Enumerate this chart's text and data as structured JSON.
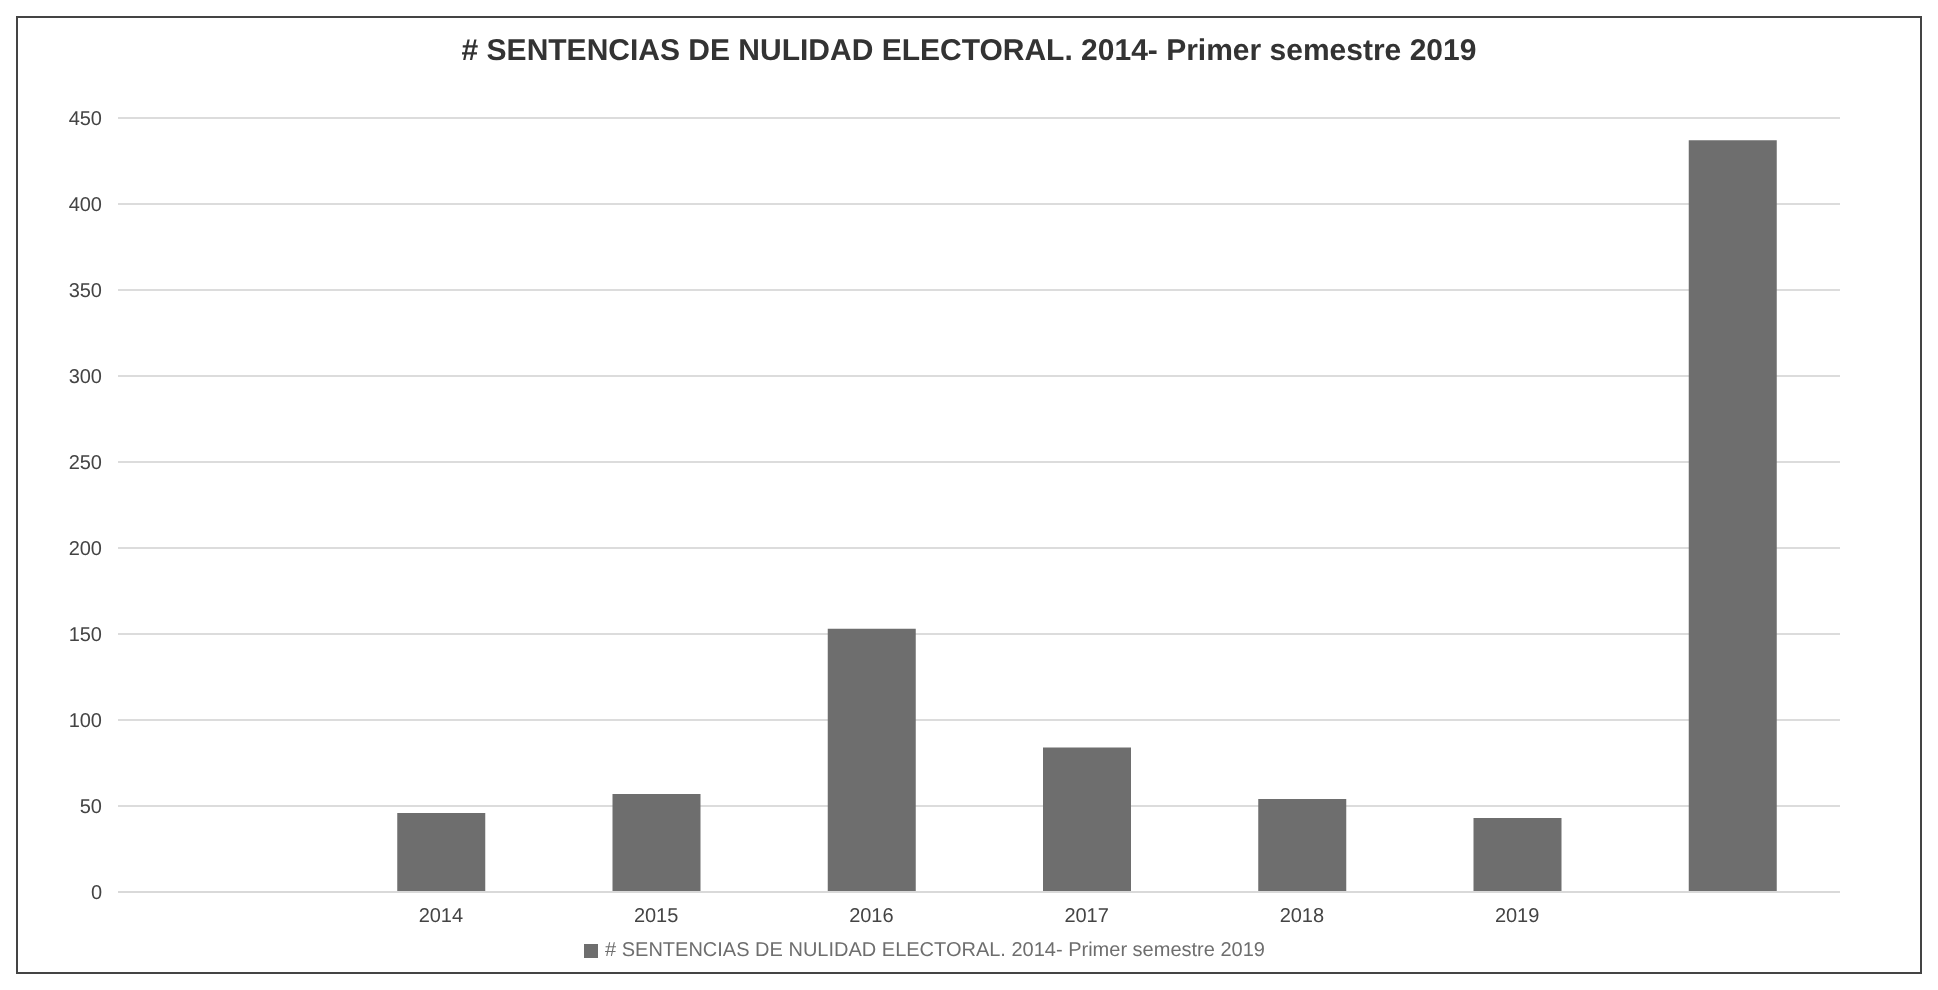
{
  "chart_data": {
    "type": "bar",
    "title": "# SENTENCIAS DE NULIDAD ELECTORAL. 2014- Primer semestre 2019",
    "categories": [
      null,
      "2014",
      "2015",
      "2016",
      "2017",
      "2018",
      "2019",
      null
    ],
    "series": [
      {
        "name": "# SENTENCIAS DE NULIDAD ELECTORAL. 2014- Primer semestre 2019",
        "color": "#6e6e6e",
        "values": [
          null,
          46,
          57,
          153,
          84,
          54,
          43,
          437
        ]
      }
    ],
    "ylim": [
      0,
      450
    ],
    "yticks": [
      0,
      50,
      100,
      150,
      200,
      250,
      300,
      350,
      400,
      450
    ],
    "grid": "y",
    "legend": "bottom"
  }
}
